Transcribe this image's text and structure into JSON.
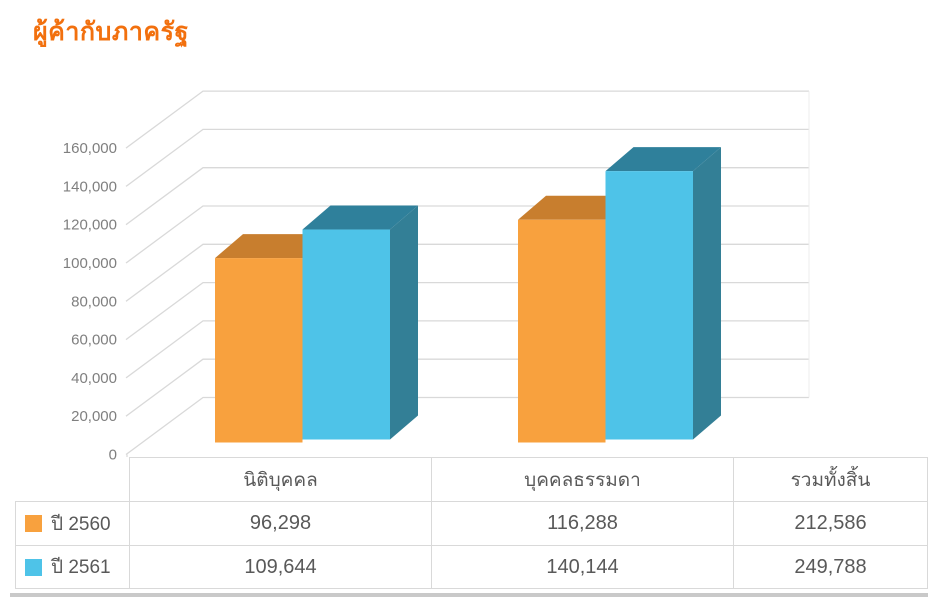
{
  "title": "ผู้ค้ากับภาครัฐ",
  "chart_data": {
    "type": "bar",
    "style": "3d-clustered-column",
    "title": "ผู้ค้ากับภาครัฐ",
    "categories": [
      "นิติบุคคล",
      "บุคคลธรรมดา"
    ],
    "series": [
      {
        "name": "ปี 2560",
        "values": [
          96298,
          116288
        ],
        "total": 212586,
        "color": "#F8A13E",
        "top_color": "#C87E2E",
        "side_color": "#B96F26"
      },
      {
        "name": "ปี 2561",
        "values": [
          109644,
          140144
        ],
        "total": 249788,
        "color": "#4EC3E8",
        "top_color": "#2F809B",
        "side_color": "#337F96"
      }
    ],
    "ylim": [
      0,
      160000
    ],
    "ytick_step": 20000,
    "ytick_labels": [
      "0",
      "20,000",
      "40,000",
      "60,000",
      "80,000",
      "100,000",
      "120,000",
      "140,000",
      "160,000"
    ],
    "grid": true,
    "grid_color": "#D9D9D9",
    "axis_label_color": "#7F7F7F",
    "legend_position": "data-table-left"
  },
  "table": {
    "headers": [
      "นิติบุคคล",
      "บุคคลธรรมดา",
      "รวมทั้งสิ้น"
    ],
    "rows": [
      {
        "label": "ปี 2560",
        "swatch_color": "#F8A13E",
        "values": [
          "96,298",
          "116,288",
          "212,586"
        ]
      },
      {
        "label": "ปี 2561",
        "swatch_color": "#4EC3E8",
        "values": [
          "109,644",
          "140,144",
          "249,788"
        ]
      }
    ]
  }
}
